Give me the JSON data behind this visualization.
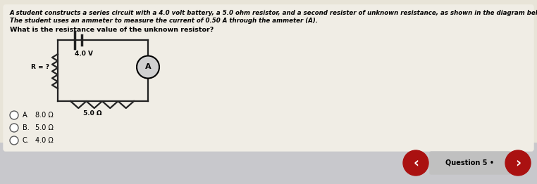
{
  "bg_top_color": "#e8e4d8",
  "bg_bottom_color": "#c8c8cc",
  "panel_color": "#e0ddd5",
  "title_text1": "A student constructs a series circuit with a 4.0 volt battery, a 5.0 ohm resistor, and a second resister of unknown resistance, as shown in the diagram below.",
  "title_text2": "The student uses an ammeter to measure the current of 0.50 A through the ammeter (A).",
  "question_text": "What is the resistance value of the unknown resistor?",
  "choices_labels": [
    "A.",
    "B.",
    "C."
  ],
  "choices_values": [
    "8.0 Ω",
    "5.0 Ω",
    "4.0 Ω"
  ],
  "battery_label": "4.0 V",
  "resistor2_label": "5.0 Ω",
  "resistor1_label": "R = ?",
  "ammeter_label": "A",
  "nav_label": "Question 5 •",
  "nav_bg_color": "#c0c0c0",
  "nav_arrow_color": "#aa1111",
  "wire_color": "#222222",
  "lw": 1.6
}
